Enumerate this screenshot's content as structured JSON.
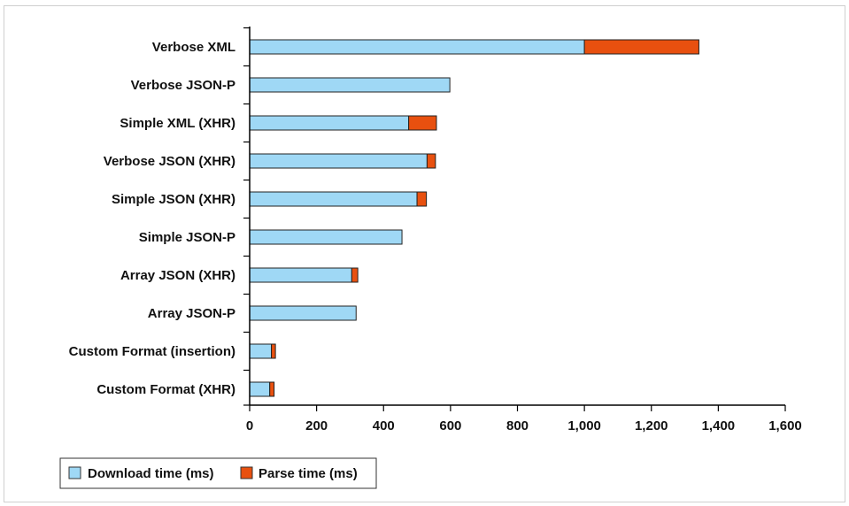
{
  "chart_data": {
    "type": "bar",
    "orientation": "horizontal",
    "stacked": true,
    "categories": [
      "Verbose XML",
      "Verbose JSON-P",
      "Simple XML (XHR)",
      "Verbose JSON (XHR)",
      "Simple JSON (XHR)",
      "Simple JSON-P",
      "Array JSON (XHR)",
      "Array JSON-P",
      "Custom Format (insertion)",
      "Custom Format (XHR)"
    ],
    "series": [
      {
        "name": "Download time (ms)",
        "color": "#9fd8f5",
        "values": [
          1000,
          598,
          475,
          530,
          500,
          455,
          305,
          318,
          65,
          60
        ]
      },
      {
        "name": "Parse time (ms)",
        "color": "#e8500f",
        "values": [
          342,
          0,
          83,
          25,
          28,
          0,
          18,
          0,
          12,
          13
        ]
      }
    ],
    "xlim": [
      0,
      1600
    ],
    "x_ticks": [
      "0",
      "200",
      "400",
      "600",
      "800",
      "1,000",
      "1,200",
      "1,400",
      "1,600"
    ],
    "x_tick_values": [
      0,
      200,
      400,
      600,
      800,
      1000,
      1200,
      1400,
      1600
    ],
    "title": "",
    "xlabel": "",
    "ylabel": "",
    "grid": false,
    "legend_position": "bottom-left"
  }
}
